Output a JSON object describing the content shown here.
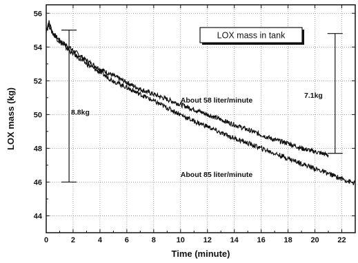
{
  "chart_data": {
    "type": "line",
    "title": "",
    "xlabel": "Time (minute)",
    "ylabel": "LOX mass (kg)",
    "xlim": [
      0,
      23
    ],
    "ylim": [
      43,
      56.5
    ],
    "xticks": [
      0,
      2,
      4,
      6,
      8,
      10,
      12,
      14,
      16,
      18,
      20,
      22
    ],
    "yticks": [
      44,
      46,
      48,
      50,
      52,
      54,
      56
    ],
    "grid": true,
    "legend": {
      "text": "LOX mass in tank",
      "placement": "top-right"
    },
    "series": [
      {
        "x": [
          0,
          0.2,
          0.5,
          1,
          2,
          3,
          4,
          5,
          6,
          7,
          8,
          9,
          10,
          11,
          12,
          13,
          14,
          15,
          16,
          17,
          18,
          19,
          20,
          21
        ],
        "y": [
          55.0,
          55.5,
          54.8,
          54.4,
          53.8,
          53.2,
          52.7,
          52.3,
          51.9,
          51.5,
          51.2,
          50.9,
          50.6,
          50.3,
          50.0,
          49.7,
          49.4,
          49.1,
          48.8,
          48.5,
          48.3,
          48.0,
          47.8,
          47.6
        ]
      },
      {
        "x": [
          0,
          0.2,
          0.5,
          1,
          2,
          3,
          4,
          5,
          6,
          7,
          8,
          9,
          10,
          11,
          12,
          13,
          14,
          15,
          16,
          17,
          18,
          19,
          20,
          21,
          22,
          23
        ],
        "y": [
          55.0,
          55.3,
          54.8,
          54.3,
          53.6,
          53.0,
          52.5,
          52.0,
          51.6,
          51.2,
          50.8,
          50.4,
          50.0,
          49.6,
          49.3,
          48.9,
          48.6,
          48.3,
          48.0,
          47.7,
          47.4,
          47.1,
          46.8,
          46.5,
          46.2,
          45.9
        ]
      }
    ],
    "annotations": [
      {
        "text": "About 58 liter/minute",
        "x": 10,
        "y": 50.7
      },
      {
        "text": "About 85 liter/minute",
        "x": 10,
        "y": 46.3
      },
      {
        "text": "8.8kg",
        "x": 1.85,
        "y": 50.0
      },
      {
        "text": "7.1kg",
        "x": 19.2,
        "y": 51.0
      }
    ],
    "markers": [
      {
        "label": "8.8kg",
        "x": 1.7,
        "y_top": 55.0,
        "y_bottom": 46.0
      },
      {
        "label": "7.1kg",
        "x": 21.5,
        "y_top": 54.8,
        "y_bottom": 47.7
      }
    ]
  }
}
